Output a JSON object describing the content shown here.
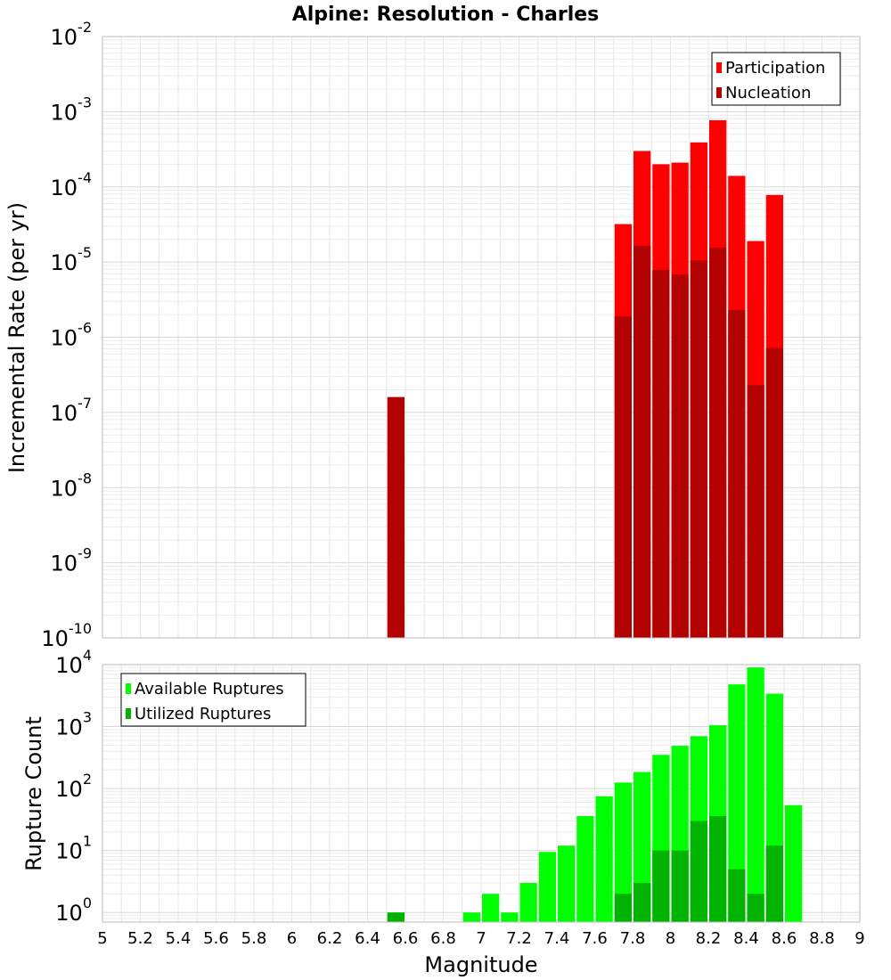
{
  "title": "Alpine: Resolution - Charles",
  "colors": {
    "participation": "#ff0000",
    "nucleation": "#b30000",
    "available": "#00ff00",
    "utilized": "#00b300",
    "grid": "#e6e6e6",
    "plot_border": "#bbbbbb"
  },
  "chart_data": [
    {
      "type": "bar",
      "panel": "top",
      "title": "Alpine: Resolution - Charles",
      "xlabel": "",
      "ylabel": "Incremental Rate (per yr)",
      "yscale": "log",
      "ylim": [
        1e-10,
        0.01
      ],
      "xlim": [
        5,
        9
      ],
      "ytick_exponents": [
        -10,
        -9,
        -8,
        -7,
        -6,
        -5,
        -4,
        -3,
        -2
      ],
      "bar_width": 0.1,
      "grid": true,
      "legend": {
        "placement": "top-right",
        "entries": [
          "Participation",
          "Nucleation"
        ]
      },
      "series": [
        {
          "name": "Participation",
          "x": [
            7.75,
            7.85,
            7.95,
            8.05,
            8.15,
            8.25,
            8.35,
            8.45,
            8.55
          ],
          "values": [
            3.2e-05,
            0.0003,
            0.0002,
            0.00021,
            0.00039,
            0.00077,
            0.00014,
            1.9e-05,
            7.8e-05
          ]
        },
        {
          "name": "Nucleation",
          "x": [
            6.55,
            7.75,
            7.85,
            7.95,
            8.05,
            8.15,
            8.25,
            8.35,
            8.45,
            8.55
          ],
          "values": [
            1.6e-07,
            1.9e-06,
            1.65e-05,
            7.9e-06,
            6.8e-06,
            1.05e-05,
            1.55e-05,
            2.3e-06,
            2.3e-07,
            7.2e-07
          ]
        }
      ]
    },
    {
      "type": "bar",
      "panel": "bottom",
      "xlabel": "Magnitude",
      "ylabel": "Rupture Count",
      "yscale": "log",
      "ylim": [
        0.7,
        10000
      ],
      "xlim": [
        5,
        9
      ],
      "ytick_exponents": [
        0,
        1,
        2,
        3,
        4
      ],
      "xticks": [
        "5",
        "5.2",
        "5.4",
        "5.6",
        "5.8",
        "6",
        "6.2",
        "6.4",
        "6.6",
        "6.8",
        "7",
        "7.2",
        "7.4",
        "7.6",
        "7.8",
        "8",
        "8.2",
        "8.4",
        "8.6",
        "8.8",
        "9"
      ],
      "bar_width": 0.1,
      "grid": true,
      "legend": {
        "placement": "top-left",
        "entries": [
          "Available Ruptures",
          "Utilized Ruptures"
        ]
      },
      "series": [
        {
          "name": "Available Ruptures",
          "x": [
            6.55,
            6.95,
            7.05,
            7.15,
            7.25,
            7.35,
            7.45,
            7.55,
            7.65,
            7.75,
            7.85,
            7.95,
            8.05,
            8.15,
            8.25,
            8.35,
            8.45,
            8.55,
            8.65
          ],
          "values": [
            1,
            1,
            2,
            1,
            3,
            9.5,
            12,
            36,
            75,
            125,
            185,
            350,
            490,
            700,
            1050,
            4800,
            9000,
            3400,
            54
          ]
        },
        {
          "name": "Utilized Ruptures",
          "x": [
            6.55,
            7.75,
            7.85,
            7.95,
            8.05,
            8.15,
            8.25,
            8.35,
            8.45,
            8.55
          ],
          "values": [
            1,
            2,
            3,
            10,
            10,
            30,
            36,
            5,
            2,
            12
          ]
        }
      ]
    }
  ]
}
